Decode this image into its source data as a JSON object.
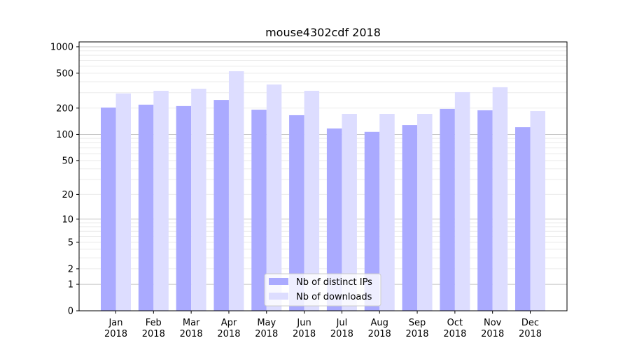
{
  "chart_data": {
    "type": "bar",
    "title": "mouse4302cdf 2018",
    "xlabel": "",
    "ylabel": "",
    "yscale": "symlog (log10(1+y))",
    "ylim": [
      0,
      1136
    ],
    "yticks": [
      0,
      1,
      2,
      5,
      10,
      20,
      50,
      100,
      200,
      500,
      1000
    ],
    "ytick_labels": [
      "0",
      "1",
      "2",
      "5",
      "10",
      "20",
      "50",
      "100",
      "200",
      "500",
      "1000"
    ],
    "grid": true,
    "legend_position": "bottom-center",
    "categories": [
      "Jan\n2018",
      "Feb\n2018",
      "Mar\n2018",
      "Apr\n2018",
      "May\n2018",
      "Jun\n2018",
      "Jul\n2018",
      "Aug\n2018",
      "Sep\n2018",
      "Oct\n2018",
      "Nov\n2018",
      "Dec\n2018"
    ],
    "category_month": [
      "Jan",
      "Feb",
      "Mar",
      "Apr",
      "May",
      "Jun",
      "Jul",
      "Aug",
      "Sep",
      "Oct",
      "Nov",
      "Dec"
    ],
    "category_year": "2018",
    "series": [
      {
        "name": "Nb of distinct IPs",
        "color": "#aaaaff",
        "values": [
          203,
          219,
          211,
          248,
          192,
          166,
          117,
          107,
          128,
          196,
          189,
          121
        ]
      },
      {
        "name": "Nb of downloads",
        "color": "#ddddff",
        "values": [
          294,
          315,
          333,
          527,
          372,
          315,
          172,
          172,
          172,
          304,
          346,
          185
        ]
      }
    ]
  }
}
